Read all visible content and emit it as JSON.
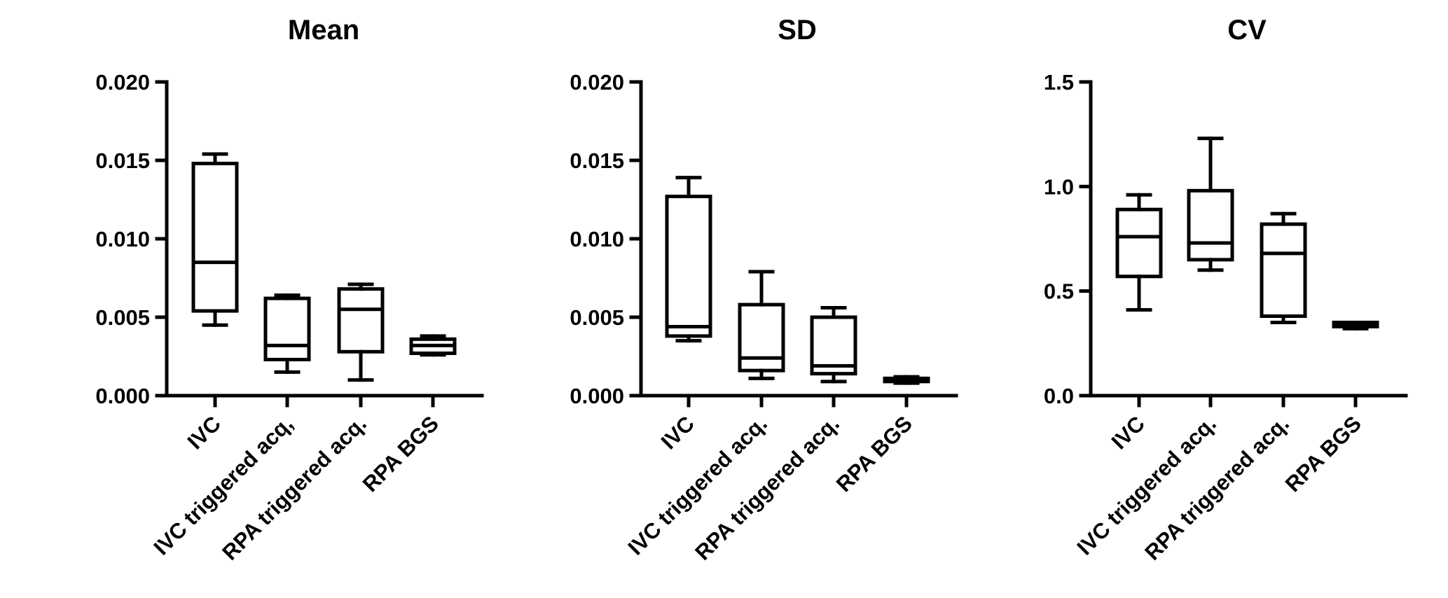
{
  "chart_data": [
    {
      "type": "box",
      "title": "Mean",
      "categories": [
        "IVC",
        "IVC triggered acq,",
        "RPA triggered acq.",
        "RPA BGS"
      ],
      "ylim": [
        0,
        0.02
      ],
      "yticks": [
        "0.000",
        "0.005",
        "0.010",
        "0.015",
        "0.020"
      ],
      "boxes": [
        {
          "min": 0.0045,
          "q1": 0.0054,
          "median": 0.0085,
          "q3": 0.0148,
          "max": 0.0154
        },
        {
          "min": 0.0015,
          "q1": 0.0023,
          "median": 0.0032,
          "q3": 0.0062,
          "max": 0.0064
        },
        {
          "min": 0.001,
          "q1": 0.0028,
          "median": 0.0055,
          "q3": 0.0068,
          "max": 0.0071
        },
        {
          "min": 0.0026,
          "q1": 0.0027,
          "median": 0.0032,
          "q3": 0.0036,
          "max": 0.0038
        }
      ],
      "grid": false
    },
    {
      "type": "box",
      "title": "SD",
      "categories": [
        "IVC",
        "IVC triggered acq.",
        "RPA triggered acq.",
        "RPA BGS"
      ],
      "ylim": [
        0,
        0.02
      ],
      "yticks": [
        "0.000",
        "0.005",
        "0.010",
        "0.015",
        "0.020"
      ],
      "boxes": [
        {
          "min": 0.0035,
          "q1": 0.0038,
          "median": 0.0044,
          "q3": 0.0127,
          "max": 0.0139
        },
        {
          "min": 0.0011,
          "q1": 0.0016,
          "median": 0.0024,
          "q3": 0.0058,
          "max": 0.0079
        },
        {
          "min": 0.0009,
          "q1": 0.0014,
          "median": 0.0019,
          "q3": 0.005,
          "max": 0.0056
        },
        {
          "min": 0.0008,
          "q1": 0.0009,
          "median": 0.001,
          "q3": 0.0011,
          "max": 0.0012
        }
      ],
      "grid": false
    },
    {
      "type": "box",
      "title": "CV",
      "categories": [
        "IVC",
        "IVC triggered acq.",
        "RPA triggered acq.",
        "RPA BGS"
      ],
      "ylim": [
        0,
        1.5
      ],
      "yticks": [
        "0.0",
        "0.5",
        "1.0",
        "1.5"
      ],
      "boxes": [
        {
          "min": 0.41,
          "q1": 0.57,
          "median": 0.76,
          "q3": 0.89,
          "max": 0.96
        },
        {
          "min": 0.6,
          "q1": 0.65,
          "median": 0.73,
          "q3": 0.98,
          "max": 1.23
        },
        {
          "min": 0.35,
          "q1": 0.38,
          "median": 0.68,
          "q3": 0.82,
          "max": 0.87
        },
        {
          "min": 0.32,
          "q1": 0.33,
          "median": 0.34,
          "q3": 0.35,
          "max": 0.35
        }
      ],
      "grid": false
    }
  ]
}
